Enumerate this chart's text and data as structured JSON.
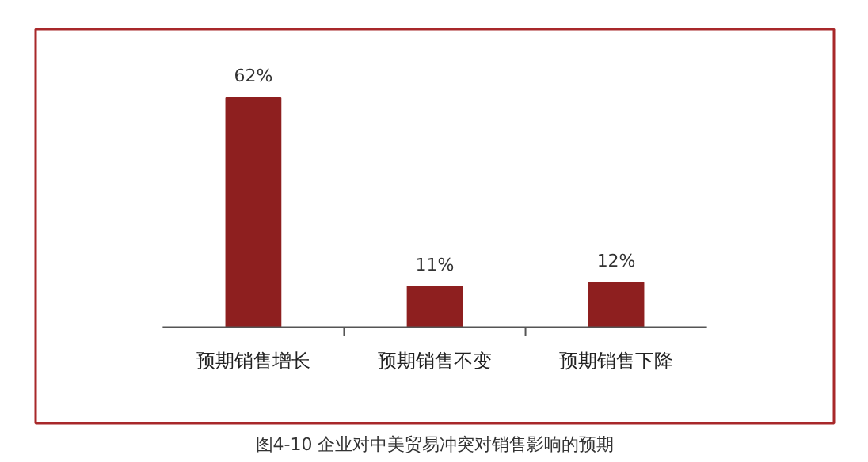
{
  "chart_data": {
    "type": "bar",
    "categories": [
      "预期销售增长",
      "预期销售不变",
      "预期销售下降"
    ],
    "values": [
      62,
      11,
      12
    ],
    "value_labels": [
      "62%",
      "11%",
      "12%"
    ],
    "color": "#8e1f1f",
    "annotations": [
      "图4-10 企业对中美贸易冲突对销售影响的预期"
    ]
  }
}
